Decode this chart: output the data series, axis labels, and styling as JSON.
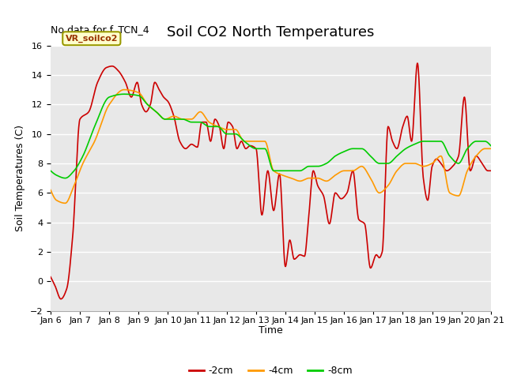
{
  "title": "Soil CO2 North Temperatures",
  "subtitle": "No data for f_TCN_4",
  "xlabel": "Time",
  "ylabel": "Soil Temperatures (C)",
  "xlim": [
    0,
    15
  ],
  "ylim": [
    -2,
    16
  ],
  "yticks": [
    -2,
    0,
    2,
    4,
    6,
    8,
    10,
    12,
    14,
    16
  ],
  "xtick_labels": [
    "Jan 6",
    "Jan 7",
    "Jan 8",
    "Jan 9",
    "Jan 10",
    "Jan 11",
    "Jan 12",
    "Jan 13",
    "Jan 14",
    "Jan 15",
    "Jan 16",
    "Jan 17",
    "Jan 18",
    "Jan 19",
    "Jan 20",
    "Jan 21"
  ],
  "legend_label_box": "VR_soilco2",
  "legend_box_facecolor": "#ffffcc",
  "legend_box_edgecolor": "#999900",
  "line_colors": {
    "2cm": "#cc0000",
    "4cm": "#ff9900",
    "8cm": "#00cc00"
  },
  "line_widths": {
    "2cm": 1.2,
    "4cm": 1.2,
    "8cm": 1.2
  },
  "legend_labels": [
    "-2cm",
    "-4cm",
    "-8cm"
  ],
  "bg_color": "#ffffff",
  "plot_bg_color": "#e8e8e8",
  "grid_color": "#ffffff",
  "title_fontsize": 13,
  "axis_label_fontsize": 9,
  "tick_fontsize": 8,
  "ctrl_t2": [
    0,
    0.15,
    0.35,
    0.55,
    0.75,
    1.0,
    1.3,
    1.6,
    1.9,
    2.1,
    2.3,
    2.55,
    2.75,
    2.95,
    3.1,
    3.25,
    3.4,
    3.55,
    3.7,
    3.85,
    4.0,
    4.2,
    4.4,
    4.6,
    4.8,
    5.0,
    5.15,
    5.3,
    5.45,
    5.6,
    5.75,
    5.9,
    6.05,
    6.2,
    6.35,
    6.5,
    6.65,
    6.8,
    7.0,
    7.2,
    7.4,
    7.6,
    7.8,
    8.0,
    8.15,
    8.3,
    8.5,
    8.65,
    8.8,
    8.95,
    9.1,
    9.3,
    9.5,
    9.7,
    9.9,
    10.1,
    10.3,
    10.5,
    10.7,
    10.9,
    11.1,
    11.2,
    11.3,
    11.5,
    11.65,
    11.8,
    12.0,
    12.15,
    12.3,
    12.5,
    12.7,
    12.85,
    13.0,
    13.15,
    13.3,
    13.5,
    13.7,
    13.9,
    14.1,
    14.3,
    14.5,
    14.7,
    14.9,
    15.0
  ],
  "ctrl_v2": [
    0.3,
    -0.3,
    -1.2,
    -0.5,
    3.0,
    11.0,
    11.5,
    13.5,
    14.5,
    14.6,
    14.3,
    13.5,
    12.5,
    13.5,
    12.0,
    11.5,
    12.0,
    13.5,
    13.0,
    12.5,
    12.2,
    11.2,
    9.5,
    9.0,
    9.3,
    9.1,
    10.8,
    10.8,
    9.5,
    11.0,
    10.5,
    9.0,
    10.8,
    10.5,
    9.0,
    9.5,
    9.0,
    9.2,
    9.0,
    4.5,
    7.5,
    4.8,
    7.3,
    1.0,
    2.8,
    1.5,
    1.8,
    1.7,
    4.5,
    7.5,
    6.5,
    5.8,
    3.9,
    6.0,
    5.6,
    6.0,
    7.5,
    4.2,
    3.9,
    0.9,
    1.8,
    1.6,
    2.0,
    10.5,
    9.5,
    9.0,
    10.5,
    11.2,
    9.5,
    14.8,
    7.0,
    5.5,
    7.8,
    8.3,
    8.0,
    7.5,
    7.8,
    8.5,
    12.5,
    7.5,
    8.5,
    8.0,
    7.5,
    7.5
  ],
  "ctrl_t4": [
    0,
    0.2,
    0.5,
    0.8,
    1.1,
    1.5,
    2.0,
    2.5,
    3.0,
    3.3,
    3.6,
    3.9,
    4.2,
    4.5,
    4.8,
    5.1,
    5.4,
    5.7,
    6.0,
    6.3,
    6.6,
    7.0,
    7.3,
    7.6,
    7.9,
    8.2,
    8.5,
    8.8,
    9.1,
    9.4,
    9.7,
    10.0,
    10.3,
    10.6,
    10.9,
    11.2,
    11.5,
    11.8,
    12.1,
    12.4,
    12.7,
    13.0,
    13.3,
    13.6,
    13.9,
    14.2,
    14.5,
    14.8,
    15.0
  ],
  "ctrl_v4": [
    6.2,
    5.5,
    5.3,
    6.5,
    8.0,
    9.5,
    12.0,
    13.0,
    12.8,
    12.0,
    11.5,
    11.0,
    11.2,
    11.0,
    11.0,
    11.5,
    10.8,
    10.5,
    10.3,
    10.3,
    9.5,
    9.5,
    9.5,
    7.5,
    7.2,
    7.0,
    6.8,
    7.0,
    7.0,
    6.8,
    7.2,
    7.5,
    7.5,
    7.8,
    7.0,
    6.0,
    6.5,
    7.5,
    8.0,
    8.0,
    7.8,
    8.0,
    8.5,
    6.0,
    5.8,
    7.5,
    8.5,
    9.0,
    9.0
  ],
  "ctrl_t8": [
    0,
    0.2,
    0.5,
    0.8,
    1.1,
    1.5,
    2.0,
    2.5,
    3.0,
    3.3,
    3.6,
    3.9,
    4.2,
    4.5,
    4.8,
    5.1,
    5.4,
    5.7,
    6.0,
    6.3,
    6.6,
    7.0,
    7.3,
    7.6,
    7.9,
    8.2,
    8.5,
    8.8,
    9.1,
    9.4,
    9.7,
    10.0,
    10.3,
    10.6,
    10.9,
    11.2,
    11.5,
    11.8,
    12.1,
    12.4,
    12.7,
    13.0,
    13.3,
    13.6,
    13.9,
    14.2,
    14.5,
    14.8,
    15.0
  ],
  "ctrl_v8": [
    7.5,
    7.2,
    7.0,
    7.5,
    8.5,
    10.5,
    12.5,
    12.7,
    12.6,
    12.0,
    11.5,
    11.0,
    11.0,
    11.0,
    10.8,
    10.8,
    10.5,
    10.5,
    10.0,
    10.0,
    9.5,
    9.0,
    9.0,
    7.5,
    7.5,
    7.5,
    7.5,
    7.8,
    7.8,
    8.0,
    8.5,
    8.8,
    9.0,
    9.0,
    8.5,
    8.0,
    8.0,
    8.5,
    9.0,
    9.3,
    9.5,
    9.5,
    9.5,
    8.5,
    8.0,
    9.0,
    9.5,
    9.5,
    9.2
  ]
}
